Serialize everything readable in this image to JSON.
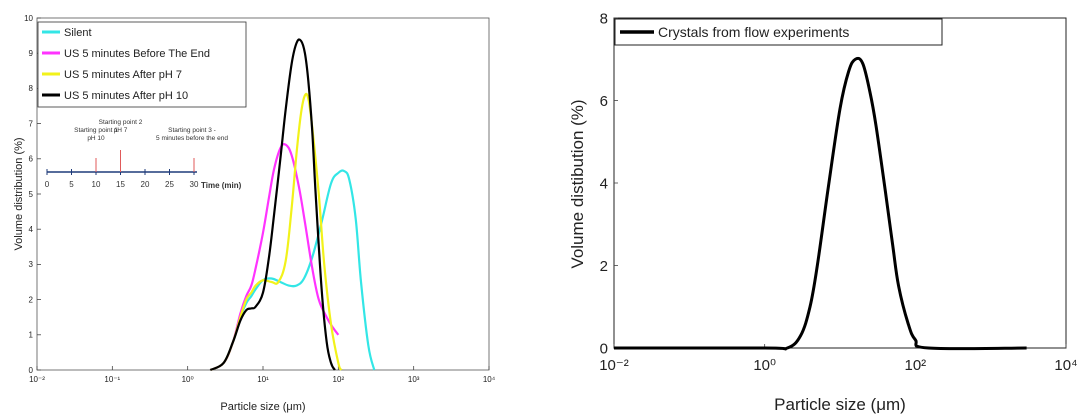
{
  "chart_data": [
    {
      "type": "line",
      "title": "",
      "xlabel": "Particle size (μm)",
      "ylabel": "Volume distribution (%)",
      "xscale": "log",
      "xlim": [
        0.01,
        10000
      ],
      "ylim": [
        0,
        10
      ],
      "x_tick_labels": [
        "10⁻²",
        "10⁻¹",
        "10⁰",
        "10¹",
        "10²",
        "10³",
        "10⁴"
      ],
      "y_tick_labels": [
        "0",
        "1",
        "2",
        "3",
        "4",
        "5",
        "6",
        "7",
        "8",
        "9",
        "10"
      ],
      "legend_position": "top-left",
      "series": [
        {
          "name": "Silent",
          "color": "#33e6e6",
          "x": [
            2,
            3,
            4,
            5,
            6,
            7,
            8,
            10,
            13,
            17,
            22,
            28,
            35,
            45,
            60,
            80,
            100,
            120,
            140,
            170,
            200,
            250,
            300
          ],
          "y": [
            0,
            0.2,
            0.8,
            1.5,
            1.9,
            2.1,
            2.3,
            2.55,
            2.6,
            2.5,
            2.4,
            2.4,
            2.6,
            3.2,
            4.2,
            5.3,
            5.6,
            5.65,
            5.4,
            4.3,
            2.5,
            0.7,
            0
          ]
        },
        {
          "name": "US 5 minutes Before The End",
          "color": "#ff33ff",
          "x": [
            2,
            3,
            4,
            5,
            6,
            7,
            8,
            10,
            12,
            14,
            17,
            20,
            24,
            30,
            36,
            45,
            55,
            70,
            85,
            100
          ],
          "y": [
            0,
            0.2,
            0.8,
            1.6,
            2.1,
            2.4,
            2.9,
            3.9,
            4.9,
            5.7,
            6.3,
            6.4,
            6.1,
            5.2,
            4.2,
            2.9,
            2.0,
            1.5,
            1.2,
            1.0
          ]
        },
        {
          "name": "US 5 minutes After pH 7",
          "color": "#f2f21a",
          "x": [
            2,
            3,
            4,
            5,
            6,
            7,
            8,
            10,
            13,
            16,
            20,
            24,
            28,
            32,
            36,
            40,
            45,
            55,
            65,
            80,
            100,
            110
          ],
          "y": [
            0,
            0.2,
            0.8,
            1.5,
            2.0,
            2.2,
            2.4,
            2.55,
            2.5,
            2.5,
            3.1,
            4.6,
            6.2,
            7.3,
            7.8,
            7.7,
            6.9,
            5.0,
            3.0,
            1.3,
            0.2,
            0
          ]
        },
        {
          "name": "US 5 minutes After pH 10",
          "color": "#000000",
          "x": [
            2,
            3,
            4,
            5,
            6,
            7,
            8,
            10,
            12,
            14,
            17,
            20,
            24,
            28,
            32,
            36,
            40,
            45,
            50,
            60,
            70,
            80,
            90
          ],
          "y": [
            0,
            0.2,
            0.8,
            1.4,
            1.7,
            1.75,
            1.8,
            2.2,
            3.2,
            4.4,
            6.0,
            7.4,
            8.7,
            9.3,
            9.35,
            9.0,
            8.2,
            6.8,
            5.0,
            2.3,
            0.8,
            0.2,
            0
          ]
        }
      ],
      "inset": {
        "axis_label": "Time (min)",
        "ticks": [
          "0",
          "5",
          "10",
          "15",
          "20",
          "25",
          "30"
        ],
        "annotations": [
          {
            "text": "Starting point 1\npH 10",
            "at": 10
          },
          {
            "text": "Starting point 2\npH 7",
            "at": 15
          },
          {
            "text": "Starting point 3 -\n5 minutes before the end",
            "at": 30
          }
        ]
      }
    },
    {
      "type": "line",
      "title": "",
      "xlabel": "Particle size (μm)",
      "ylabel": "Volume distibution (%)",
      "xscale": "log",
      "xlim": [
        0.01,
        10000
      ],
      "ylim": [
        0,
        8
      ],
      "x_tick_labels": [
        "10⁻²",
        "10⁰",
        "10²",
        "10⁴"
      ],
      "y_tick_labels": [
        "0",
        "2",
        "4",
        "6",
        "8"
      ],
      "legend_position": "top-left",
      "series": [
        {
          "name": "Crystals from flow experiments",
          "color": "#000000",
          "x": [
            0.01,
            1,
            2,
            3,
            4,
            5,
            7,
            10,
            13,
            16,
            20,
            25,
            30,
            40,
            50,
            60,
            80,
            100,
            150,
            3000
          ],
          "y": [
            0,
            0,
            0,
            0.3,
            1.0,
            2.0,
            3.9,
            5.8,
            6.7,
            7.0,
            6.9,
            6.2,
            5.4,
            3.8,
            2.5,
            1.5,
            0.6,
            0.2,
            0,
            0
          ]
        }
      ]
    }
  ]
}
